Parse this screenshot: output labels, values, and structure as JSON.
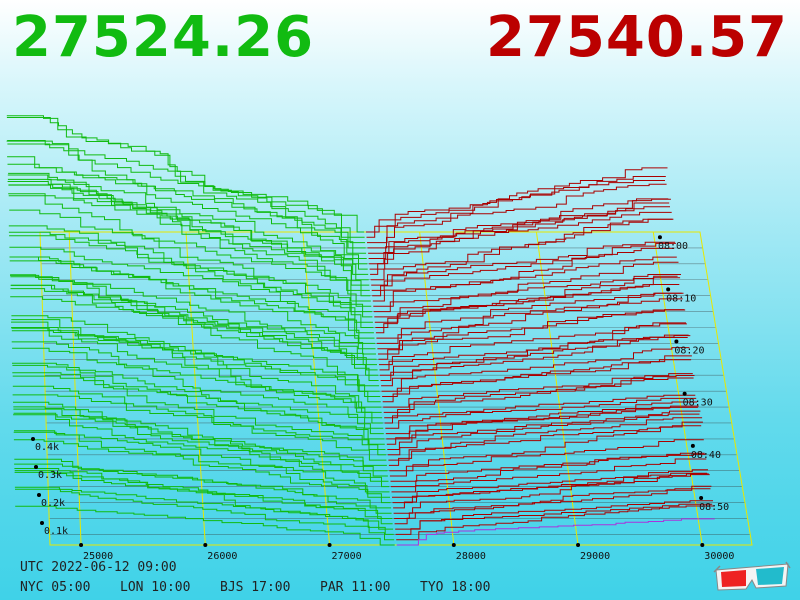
{
  "header": {
    "bid_price": "27524.26",
    "ask_price": "27540.57"
  },
  "footer": {
    "utc": "UTC 2022-06-12 09:00",
    "zones": [
      "NYC 05:00",
      "LON 10:00",
      "BJS 17:00",
      "PAR 11:00",
      "TYO 18:00"
    ]
  },
  "colors": {
    "bid": "#11bb11",
    "ask": "#aa0000",
    "latest_ask": "#aa33dd",
    "grid": "#e8e800"
  },
  "icons": {
    "stereo": "3d-glasses-icon"
  },
  "chart_data": {
    "type": "area",
    "x_ticks": [
      25000,
      26000,
      27000,
      28000,
      29000,
      30000
    ],
    "time_ticks": [
      "08:00",
      "08:10",
      "08:20",
      "08:30",
      "08:40",
      "08:50"
    ],
    "depth_ticks": [
      "0.1k",
      "0.2k",
      "0.3k",
      "0.4k"
    ],
    "xlim": [
      24750,
      30400
    ],
    "bid_price": 27524.26,
    "ask_price": 27540.57,
    "snapshot_count": 60
  }
}
